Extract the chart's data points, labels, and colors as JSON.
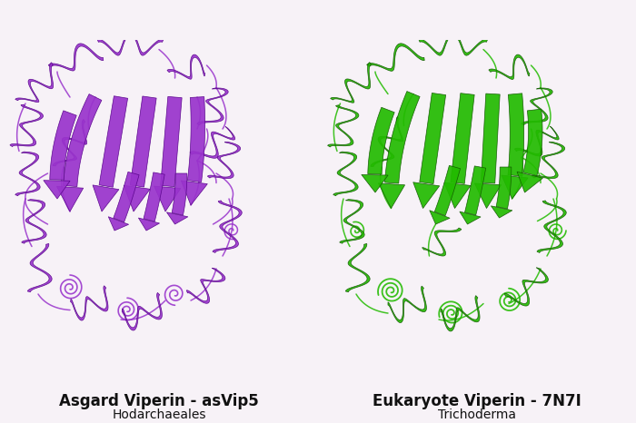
{
  "background_color": "#f7f2f7",
  "title_left": "Asgard Viperin - asVip5",
  "subtitle_left": "Hodarchaeales",
  "title_right": "Eukaryote Viperin - 7N7I",
  "subtitle_right": "Trichoderma",
  "color_left": "#9933cc",
  "color_left_dark": "#550088",
  "color_right": "#22bb00",
  "color_right_dark": "#115500",
  "title_fontsize": 12,
  "subtitle_fontsize": 10,
  "figsize": [
    7.0,
    4.66
  ],
  "dpi": 100
}
